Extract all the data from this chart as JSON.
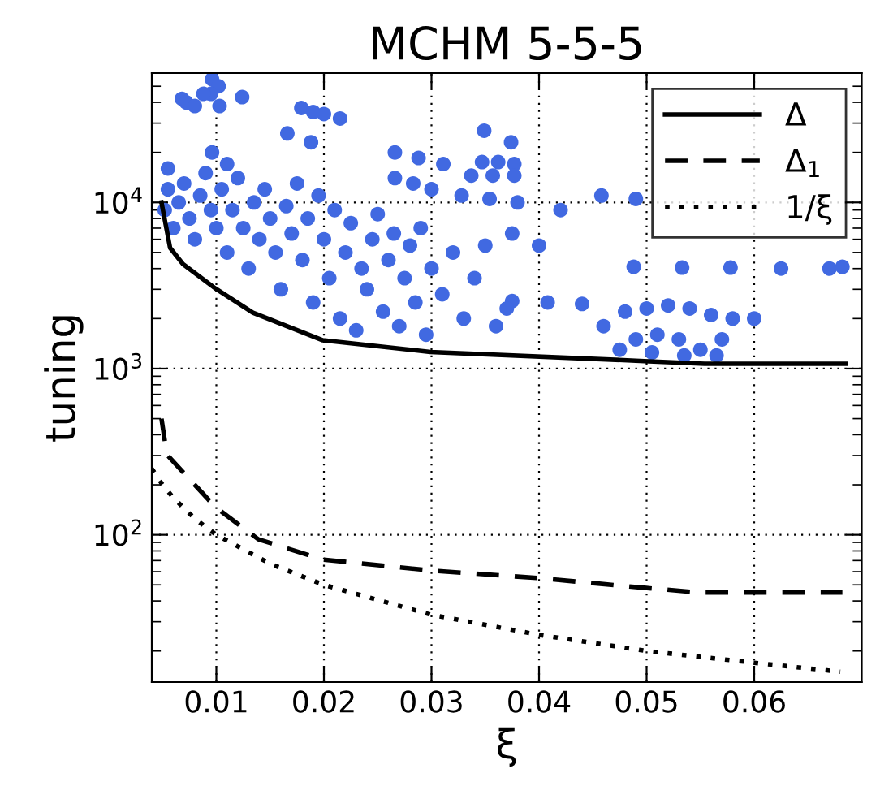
{
  "chart_data": {
    "type": "line",
    "title": "MCHM 5-5-5",
    "xlabel": "ξ",
    "ylabel": "tuning",
    "log": "y",
    "grid": true,
    "legend": "top right",
    "xlim": [
      0.004,
      0.07
    ],
    "xticks": [
      0.01,
      0.02,
      0.03,
      0.04,
      0.05,
      0.06
    ],
    "ylim": [
      13,
      60000
    ],
    "yticks": [
      {
        "value": 100,
        "label": "10$^{2}$"
      },
      {
        "value": 1000,
        "label": "10$^{3}$"
      },
      {
        "value": 10000,
        "label": "10$^{4}$"
      }
    ],
    "series": [
      {
        "type": "scatter",
        "color": "#4169e1",
        "marker": "circle",
        "x": [
          0.0096,
          0.0102,
          0.0095,
          0.0103,
          0.0068,
          0.0072,
          0.008,
          0.0088,
          0.0124,
          0.0179,
          0.019,
          0.02,
          0.0215,
          0.0166,
          0.0188,
          0.0096,
          0.011,
          0.0349,
          0.0374,
          0.0266,
          0.0288,
          0.0311,
          0.0266,
          0.0283,
          0.03,
          0.0347,
          0.0362,
          0.0377,
          0.0337,
          0.0357,
          0.0377,
          0.0328,
          0.0354,
          0.038,
          0.042,
          0.0458,
          0.049,
          0.0488,
          0.0533,
          0.0578,
          0.0625,
          0.067,
          0.0682,
          0.0375,
          0.04,
          0.0375,
          0.0408,
          0.044,
          0.0052,
          0.0055,
          0.0055,
          0.006,
          0.0065,
          0.007,
          0.0075,
          0.008,
          0.0085,
          0.009,
          0.0095,
          0.01,
          0.0105,
          0.011,
          0.0115,
          0.012,
          0.0125,
          0.013,
          0.0135,
          0.014,
          0.0145,
          0.015,
          0.0155,
          0.016,
          0.0165,
          0.017,
          0.0175,
          0.018,
          0.0185,
          0.019,
          0.0195,
          0.02,
          0.0205,
          0.021,
          0.0215,
          0.022,
          0.0225,
          0.023,
          0.0235,
          0.024,
          0.0245,
          0.025,
          0.0255,
          0.026,
          0.0265,
          0.027,
          0.0275,
          0.028,
          0.0285,
          0.029,
          0.0295,
          0.03,
          0.031,
          0.032,
          0.033,
          0.034,
          0.035,
          0.036,
          0.037,
          0.046,
          0.048,
          0.05,
          0.052,
          0.054,
          0.056,
          0.058,
          0.06,
          0.049,
          0.051,
          0.053,
          0.055,
          0.057,
          0.0475,
          0.0505,
          0.0535,
          0.0565
        ],
        "values": [
          55000,
          50000,
          45000,
          38000,
          42000,
          40000,
          38000,
          45000,
          43000,
          37000,
          35000,
          34000,
          32000,
          26000,
          23000,
          20000,
          17000,
          27000,
          23000,
          20000,
          18500,
          17000,
          14000,
          13000,
          12000,
          17500,
          17500,
          17000,
          14500,
          14500,
          14500,
          11000,
          10500,
          10000,
          9000,
          11000,
          10500,
          4100,
          4050,
          4050,
          4000,
          4000,
          4100,
          6500,
          5500,
          2550,
          2500,
          2450,
          9000,
          12000,
          16000,
          7000,
          10000,
          13000,
          8000,
          6000,
          11000,
          15000,
          9000,
          7000,
          12000,
          5000,
          9000,
          14000,
          7000,
          4000,
          10000,
          6000,
          12000,
          8000,
          5000,
          3000,
          9500,
          6500,
          13000,
          4500,
          8000,
          2500,
          11000,
          6000,
          3500,
          9000,
          2000,
          5000,
          7500,
          1700,
          4000,
          3000,
          6000,
          8500,
          2200,
          4500,
          6500,
          1800,
          3500,
          5500,
          2500,
          7000,
          1600,
          4000,
          2800,
          5000,
          2000,
          3500,
          5500,
          1800,
          2300,
          1800,
          2200,
          2300,
          2400,
          2300,
          2100,
          2000,
          2000,
          1500,
          1600,
          1500,
          1300,
          1500,
          1300,
          1250,
          1200,
          1200
        ]
      },
      {
        "name": "Δ",
        "color": "#000000",
        "line_style": "solid",
        "x": [
          0.0049,
          0.0057,
          0.0069,
          0.0099,
          0.0134,
          0.0199,
          0.0299,
          0.0498,
          0.0554,
          0.0685
        ],
        "values": [
          10000,
          5330,
          4250,
          3040,
          2170,
          1480,
          1260,
          1110,
          1070,
          1070
        ]
      },
      {
        "name": "Δ$_{1}$",
        "color": "#000000",
        "line_style": "dashed",
        "x": [
          0.0049,
          0.0054,
          0.0099,
          0.0139,
          0.0199,
          0.0299,
          0.0398,
          0.0498,
          0.0548,
          0.0682
        ],
        "values": [
          500,
          304,
          147,
          94,
          71,
          61,
          55,
          48,
          45,
          45
        ]
      },
      {
        "name": "1/ξ",
        "color": "#000000",
        "line_style": "dotted",
        "x": [
          0.004,
          0.005,
          0.006,
          0.008,
          0.01,
          0.015,
          0.02,
          0.03,
          0.04,
          0.05,
          0.06,
          0.068
        ],
        "values": [
          250,
          200,
          167,
          125,
          100,
          67,
          50,
          33,
          25,
          20,
          17,
          15
        ]
      }
    ]
  }
}
